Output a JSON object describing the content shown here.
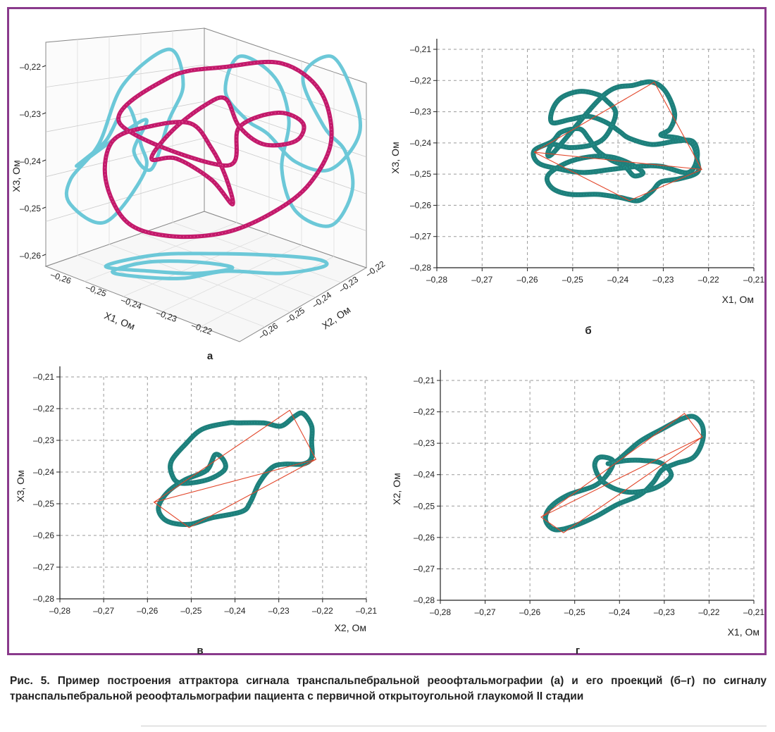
{
  "colors": {
    "frame": "#8a3a8c",
    "trajectory": "#1e7f7b",
    "triangle": "#e2462a",
    "attractor3d": "#c21a6b",
    "projection3d": "#6cc8d8",
    "grid": "#9a9a9a"
  },
  "chart_data": [
    {
      "panel": "а",
      "type": "scatter3d",
      "labels": {
        "x": "X1, Ом",
        "y": "X2, Ом",
        "z": "X3, Ом"
      },
      "x_ticks": [
        "–0,26",
        "–0,25",
        "–0,24",
        "–0,23",
        "–0,22"
      ],
      "y_ticks": [
        "–0,22",
        "–0,23",
        "–0,24",
        "–0,25",
        "–0,26"
      ],
      "z_ticks": [
        "–0,22",
        "–0,23",
        "–0,24",
        "–0,25",
        "–0,26"
      ],
      "xlim": [
        -0.265,
        -0.215
      ],
      "ylim": [
        -0.265,
        -0.215
      ],
      "zlim": [
        -0.265,
        -0.215
      ]
    },
    {
      "panel": "б",
      "type": "line",
      "xlabel": "X1, Ом",
      "ylabel": "X3, Ом",
      "xlim": [
        -0.28,
        -0.21
      ],
      "ylim": [
        -0.28,
        -0.21
      ],
      "x_ticks": [
        "–0,28",
        "–0,27",
        "–0,26",
        "–0,25",
        "–0,24",
        "–0,23",
        "–0,22",
        "–0,21"
      ],
      "y_ticks": [
        "–0,21",
        "–0,22",
        "–0,23",
        "–0,24",
        "–0,25",
        "–0,26",
        "–0,27",
        "–0,28"
      ],
      "trajectory": [
        [
          -0.243,
          -0.2245
        ],
        [
          -0.2365,
          -0.2215
        ],
        [
          -0.2325,
          -0.2205
        ],
        [
          -0.2295,
          -0.2235
        ],
        [
          -0.2275,
          -0.2305
        ],
        [
          -0.2285,
          -0.2355
        ],
        [
          -0.2305,
          -0.2375
        ],
        [
          -0.2265,
          -0.2385
        ],
        [
          -0.2235,
          -0.2405
        ],
        [
          -0.2225,
          -0.2455
        ],
        [
          -0.2225,
          -0.2495
        ],
        [
          -0.2265,
          -0.2515
        ],
        [
          -0.2305,
          -0.2525
        ],
        [
          -0.2325,
          -0.2555
        ],
        [
          -0.2355,
          -0.2585
        ],
        [
          -0.2395,
          -0.2575
        ],
        [
          -0.2445,
          -0.2565
        ],
        [
          -0.2505,
          -0.2565
        ],
        [
          -0.2545,
          -0.2545
        ],
        [
          -0.2555,
          -0.2505
        ],
        [
          -0.2515,
          -0.2465
        ],
        [
          -0.2465,
          -0.2445
        ],
        [
          -0.2415,
          -0.2445
        ],
        [
          -0.2375,
          -0.2465
        ],
        [
          -0.2345,
          -0.2495
        ],
        [
          -0.2365,
          -0.2505
        ],
        [
          -0.2385,
          -0.2475
        ],
        [
          -0.2415,
          -0.2455
        ],
        [
          -0.2445,
          -0.2425
        ],
        [
          -0.2465,
          -0.2385
        ],
        [
          -0.2485,
          -0.2355
        ],
        [
          -0.2525,
          -0.2365
        ],
        [
          -0.2545,
          -0.2395
        ],
        [
          -0.2585,
          -0.2425
        ],
        [
          -0.2575,
          -0.2465
        ],
        [
          -0.2525,
          -0.2485
        ],
        [
          -0.2475,
          -0.2495
        ],
        [
          -0.2415,
          -0.2485
        ],
        [
          -0.2355,
          -0.2475
        ],
        [
          -0.2305,
          -0.2475
        ],
        [
          -0.2245,
          -0.2495
        ],
        [
          -0.2225,
          -0.2445
        ],
        [
          -0.2235,
          -0.2395
        ],
        [
          -0.2275,
          -0.2395
        ],
        [
          -0.2325,
          -0.2405
        ],
        [
          -0.2375,
          -0.2385
        ],
        [
          -0.2395,
          -0.2365
        ],
        [
          -0.2425,
          -0.2335
        ],
        [
          -0.2465,
          -0.2315
        ],
        [
          -0.2505,
          -0.2325
        ],
        [
          -0.2545,
          -0.2335
        ],
        [
          -0.2545,
          -0.2295
        ],
        [
          -0.2525,
          -0.2255
        ],
        [
          -0.2485,
          -0.2235
        ],
        [
          -0.2445,
          -0.2245
        ],
        [
          -0.2425,
          -0.2265
        ],
        [
          -0.2405,
          -0.2305
        ],
        [
          -0.2425,
          -0.2375
        ],
        [
          -0.2455,
          -0.2405
        ],
        [
          -0.2505,
          -0.2415
        ],
        [
          -0.2545,
          -0.2405
        ],
        [
          -0.2545,
          -0.2435
        ]
      ],
      "triangle": [
        [
          -0.2585,
          -0.243
        ],
        [
          -0.232,
          -0.2205
        ],
        [
          -0.2215,
          -0.2485
        ],
        [
          -0.2375,
          -0.2585
        ],
        [
          -0.2585,
          -0.243
        ],
        [
          -0.2215,
          -0.2485
        ]
      ]
    },
    {
      "panel": "в",
      "type": "line",
      "xlabel": "X2, Ом",
      "ylabel": "X3, Ом",
      "xlim": [
        -0.28,
        -0.21
      ],
      "ylim": [
        -0.28,
        -0.21
      ],
      "x_ticks": [
        "–0,28",
        "–0,27",
        "–0,26",
        "–0,25",
        "–0,24",
        "–0,23",
        "–0,22",
        "–0,21"
      ],
      "y_ticks": [
        "–0,21",
        "–0,22",
        "–0,23",
        "–0,24",
        "–0,25",
        "–0,26",
        "–0,27",
        "–0,28"
      ],
      "trajectory": [
        [
          -0.2395,
          -0.2245
        ],
        [
          -0.2335,
          -0.2245
        ],
        [
          -0.2295,
          -0.2255
        ],
        [
          -0.2265,
          -0.2225
        ],
        [
          -0.2245,
          -0.2215
        ],
        [
          -0.2225,
          -0.2255
        ],
        [
          -0.2225,
          -0.2305
        ],
        [
          -0.2225,
          -0.2355
        ],
        [
          -0.2245,
          -0.2375
        ],
        [
          -0.2285,
          -0.2375
        ],
        [
          -0.2315,
          -0.2385
        ],
        [
          -0.2345,
          -0.2435
        ],
        [
          -0.2365,
          -0.2495
        ],
        [
          -0.2385,
          -0.2525
        ],
        [
          -0.2455,
          -0.2545
        ],
        [
          -0.2505,
          -0.2565
        ],
        [
          -0.2555,
          -0.2555
        ],
        [
          -0.2575,
          -0.2515
        ],
        [
          -0.2555,
          -0.2465
        ],
        [
          -0.2515,
          -0.2425
        ],
        [
          -0.2465,
          -0.2395
        ],
        [
          -0.2445,
          -0.2345
        ],
        [
          -0.2425,
          -0.2365
        ],
        [
          -0.2425,
          -0.2395
        ],
        [
          -0.2465,
          -0.2425
        ],
        [
          -0.2525,
          -0.2435
        ],
        [
          -0.2545,
          -0.2405
        ],
        [
          -0.2545,
          -0.2365
        ],
        [
          -0.2515,
          -0.2315
        ],
        [
          -0.2475,
          -0.2265
        ],
        [
          -0.2415,
          -0.2245
        ]
      ],
      "triangle": [
        [
          -0.2585,
          -0.2495
        ],
        [
          -0.2275,
          -0.2205
        ],
        [
          -0.2215,
          -0.236
        ],
        [
          -0.2505,
          -0.2575
        ],
        [
          -0.2585,
          -0.2495
        ],
        [
          -0.2215,
          -0.236
        ]
      ]
    },
    {
      "panel": "г",
      "type": "line",
      "xlabel": "X1, Ом",
      "ylabel": "X2, Ом",
      "xlim": [
        -0.28,
        -0.21
      ],
      "ylim": [
        -0.28,
        -0.21
      ],
      "x_ticks": [
        "–0,28",
        "–0,27",
        "–0,26",
        "–0,25",
        "–0,24",
        "–0,23",
        "–0,22",
        "–0,21"
      ],
      "y_ticks": [
        "–0,21",
        "–0,22",
        "–0,23",
        "–0,24",
        "–0,25",
        "–0,26",
        "–0,27",
        "–0,28"
      ],
      "trajectory": [
        [
          -0.2405,
          -0.2355
        ],
        [
          -0.2355,
          -0.2295
        ],
        [
          -0.2305,
          -0.2255
        ],
        [
          -0.2265,
          -0.2225
        ],
        [
          -0.2235,
          -0.2215
        ],
        [
          -0.2215,
          -0.2245
        ],
        [
          -0.2215,
          -0.2295
        ],
        [
          -0.2235,
          -0.2345
        ],
        [
          -0.2275,
          -0.2365
        ],
        [
          -0.2305,
          -0.2385
        ],
        [
          -0.2325,
          -0.2425
        ],
        [
          -0.2355,
          -0.2465
        ],
        [
          -0.2405,
          -0.2495
        ],
        [
          -0.2455,
          -0.2535
        ],
        [
          -0.2505,
          -0.2565
        ],
        [
          -0.2545,
          -0.2575
        ],
        [
          -0.2565,
          -0.2545
        ],
        [
          -0.2555,
          -0.2505
        ],
        [
          -0.2515,
          -0.2465
        ],
        [
          -0.2455,
          -0.2435
        ],
        [
          -0.2425,
          -0.2395
        ],
        [
          -0.2415,
          -0.2355
        ],
        [
          -0.2445,
          -0.2345
        ],
        [
          -0.2455,
          -0.2375
        ],
        [
          -0.2435,
          -0.2425
        ],
        [
          -0.2385,
          -0.2455
        ],
        [
          -0.2325,
          -0.2445
        ],
        [
          -0.2285,
          -0.2405
        ],
        [
          -0.2305,
          -0.2365
        ],
        [
          -0.2345,
          -0.2355
        ],
        [
          -0.2385,
          -0.2355
        ],
        [
          -0.2425,
          -0.2365
        ]
      ],
      "triangle": [
        [
          -0.2575,
          -0.2535
        ],
        [
          -0.2255,
          -0.2205
        ],
        [
          -0.2215,
          -0.228
        ],
        [
          -0.2525,
          -0.2585
        ],
        [
          -0.2575,
          -0.2535
        ],
        [
          -0.2215,
          -0.228
        ]
      ]
    }
  ],
  "panel_labels": {
    "a": "а",
    "b": "б",
    "v": "в",
    "g": "г"
  },
  "caption": "Рис. 5. Пример построения аттрактора сигнала транспальпебральной реоофтальмографии (а) и его проекций (б–г) по сигналу транспальпебральной реоофтальмографии пациента с первичной открытоугольной глаукомой II стадии"
}
